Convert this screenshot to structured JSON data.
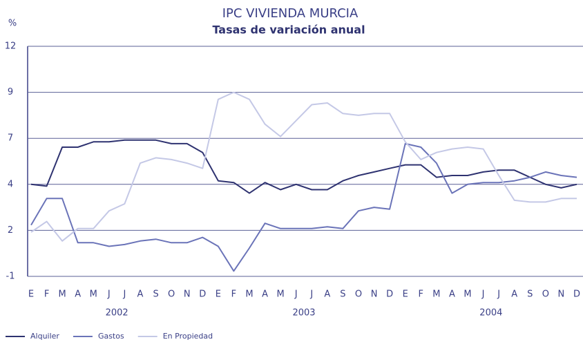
{
  "chart_data": {
    "type": "line",
    "title": "IPC VIVIENDA MURCIA",
    "subtitle": "Tasas de variación anual",
    "y_label": "%",
    "categories": [
      "E",
      "F",
      "M",
      "A",
      "M",
      "J",
      "J",
      "A",
      "S",
      "O",
      "N",
      "D",
      "E",
      "F",
      "M",
      "A",
      "M",
      "J",
      "J",
      "A",
      "S",
      "O",
      "N",
      "D",
      "E",
      "F",
      "M",
      "A",
      "M",
      "J",
      "J",
      "A",
      "S",
      "O",
      "N",
      "D"
    ],
    "years": [
      "2002",
      "2003",
      "2004"
    ],
    "ylim": [
      -1,
      12
    ],
    "yticks": [
      {
        "value": -1,
        "label": "-1"
      },
      {
        "value": 1.6,
        "label": "2"
      },
      {
        "value": 4.2,
        "label": "4"
      },
      {
        "value": 6.8,
        "label": "7"
      },
      {
        "value": 9.4,
        "label": "9"
      },
      {
        "value": 12,
        "label": "12"
      }
    ],
    "grid": true,
    "series": [
      {
        "name": "Alquiler",
        "color": "#2e3270",
        "values": [
          4.2,
          4.1,
          6.3,
          6.3,
          6.6,
          6.6,
          6.7,
          6.7,
          6.7,
          6.5,
          6.5,
          6.0,
          4.4,
          4.3,
          3.7,
          4.3,
          3.9,
          4.2,
          3.9,
          3.9,
          4.4,
          4.7,
          4.9,
          5.1,
          5.3,
          5.3,
          4.6,
          4.7,
          4.7,
          4.9,
          5.0,
          5.0,
          4.6,
          4.2,
          4.0,
          4.2
        ]
      },
      {
        "name": "Gastos",
        "color": "#6a73b8",
        "values": [
          1.9,
          3.4,
          3.4,
          0.9,
          0.9,
          0.7,
          0.8,
          1.0,
          1.1,
          0.9,
          0.9,
          1.2,
          0.7,
          -0.7,
          0.6,
          2.0,
          1.7,
          1.7,
          1.7,
          1.8,
          1.7,
          2.7,
          2.9,
          2.8,
          6.5,
          6.3,
          5.4,
          3.7,
          4.2,
          4.3,
          4.3,
          4.4,
          4.6,
          4.9,
          4.7,
          4.6
        ]
      },
      {
        "name": "En Propiedad",
        "color": "#c4c8e6",
        "values": [
          1.5,
          2.1,
          1.0,
          1.7,
          1.7,
          2.7,
          3.1,
          5.4,
          5.7,
          5.6,
          5.4,
          5.1,
          9.0,
          9.4,
          9.0,
          7.6,
          6.9,
          7.8,
          8.7,
          8.8,
          8.2,
          8.1,
          8.2,
          8.2,
          6.6,
          5.6,
          6.0,
          6.2,
          6.3,
          6.2,
          4.7,
          3.3,
          3.2,
          3.2,
          3.4,
          3.4
        ]
      }
    ]
  }
}
